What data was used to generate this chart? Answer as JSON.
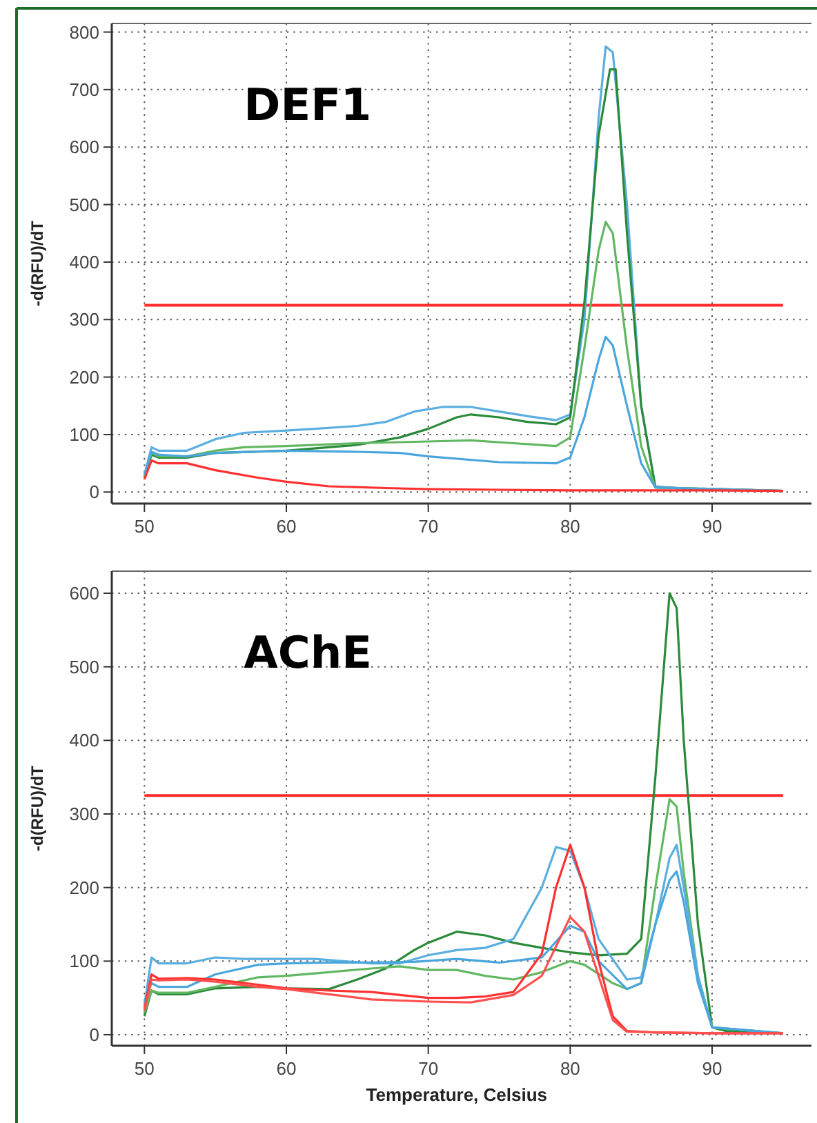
{
  "chart_data": [
    {
      "type": "line",
      "title": "DEF1",
      "ylabel": "-d(RFU)/dT",
      "xlim": [
        47.7,
        97
      ],
      "xticks": [
        50,
        60,
        70,
        80,
        90
      ],
      "ylim": [
        -20,
        815
      ],
      "yticks": [
        0,
        100,
        200,
        300,
        400,
        500,
        600,
        700,
        800
      ],
      "grid": true,
      "marker": "none",
      "line_style": "solid",
      "ref_lines": [
        {
          "axis": "y",
          "value": 325,
          "color": "#ff2a2a"
        }
      ],
      "series": [
        {
          "color": "#5aaee0",
          "x": [
            50,
            50.5,
            51,
            53,
            55,
            57,
            60,
            62,
            65,
            67,
            69,
            71,
            73,
            75,
            77,
            79,
            80,
            81,
            82,
            82.5,
            83,
            84,
            85,
            86,
            88,
            95
          ],
          "values": [
            30,
            78,
            72,
            72,
            92,
            103,
            107,
            110,
            115,
            122,
            140,
            148,
            148,
            140,
            132,
            125,
            135,
            300,
            650,
            775,
            765,
            500,
            150,
            10,
            6,
            2
          ]
        },
        {
          "color": "#2a8a3a",
          "x": [
            50,
            50.5,
            51,
            53,
            55,
            60,
            65,
            68,
            70,
            72,
            73,
            75,
            77,
            79,
            80,
            81,
            82,
            82.8,
            83.2,
            84,
            85,
            86,
            95
          ],
          "values": [
            25,
            65,
            60,
            60,
            68,
            72,
            82,
            95,
            110,
            130,
            135,
            130,
            122,
            118,
            130,
            330,
            620,
            735,
            735,
            450,
            150,
            8,
            2
          ]
        },
        {
          "color": "#62b862",
          "x": [
            50,
            50.5,
            51,
            53,
            55,
            57,
            60,
            65,
            70,
            73,
            76,
            79,
            80,
            81,
            82,
            82.5,
            83,
            84,
            85,
            86,
            95
          ],
          "values": [
            28,
            68,
            62,
            62,
            72,
            78,
            80,
            85,
            88,
            90,
            85,
            80,
            95,
            250,
            420,
            470,
            450,
            250,
            80,
            8,
            2
          ]
        },
        {
          "color": "#4aa6dc",
          "x": [
            50,
            50.5,
            51,
            53,
            55,
            60,
            65,
            68,
            70,
            75,
            79,
            80,
            81,
            82,
            82.5,
            83,
            84,
            85,
            86,
            95
          ],
          "values": [
            30,
            70,
            65,
            62,
            68,
            72,
            70,
            68,
            62,
            52,
            50,
            60,
            130,
            230,
            270,
            255,
            150,
            50,
            8,
            2
          ]
        },
        {
          "color": "#ff3030",
          "x": [
            50,
            50.5,
            51,
            53,
            55,
            58,
            60,
            63,
            67,
            70,
            75,
            80,
            85,
            90,
            95
          ],
          "values": [
            22,
            55,
            50,
            50,
            38,
            25,
            18,
            10,
            7,
            5,
            4,
            3,
            3,
            3,
            2
          ]
        }
      ]
    },
    {
      "type": "line",
      "title": "AChE",
      "ylabel": "-d(RFU)/dT",
      "xlabel": "Temperature, Celsius",
      "xlim": [
        47.7,
        97
      ],
      "xticks": [
        50,
        60,
        70,
        80,
        90
      ],
      "ylim": [
        -15,
        630
      ],
      "yticks": [
        0,
        100,
        200,
        300,
        400,
        500,
        600
      ],
      "grid": true,
      "marker": "none",
      "line_style": "solid",
      "ref_lines": [
        {
          "axis": "y",
          "value": 325,
          "color": "#ff2a2a"
        }
      ],
      "series": [
        {
          "color": "#2a8a3a",
          "x": [
            50,
            50.5,
            51,
            53,
            55,
            58,
            60,
            63,
            65,
            67,
            69,
            70,
            72,
            74,
            76,
            78,
            80,
            82,
            84,
            85,
            86,
            87,
            87.5,
            88,
            89,
            90,
            91,
            95
          ],
          "values": [
            25,
            60,
            55,
            55,
            63,
            65,
            63,
            62,
            75,
            90,
            115,
            125,
            140,
            135,
            125,
            118,
            112,
            108,
            110,
            130,
            350,
            600,
            580,
            400,
            150,
            10,
            5,
            2
          ]
        },
        {
          "color": "#62b862",
          "x": [
            50,
            50.5,
            51,
            53,
            55,
            58,
            60,
            63,
            66,
            68,
            70,
            72,
            74,
            76,
            78,
            80,
            81,
            83,
            84,
            85,
            86,
            87,
            87.5,
            88,
            89,
            90,
            95
          ],
          "values": [
            30,
            60,
            57,
            57,
            65,
            78,
            80,
            85,
            90,
            93,
            88,
            88,
            80,
            75,
            85,
            100,
            95,
            70,
            62,
            70,
            200,
            320,
            310,
            220,
            80,
            10,
            2
          ]
        },
        {
          "color": "#5aaee0",
          "x": [
            50,
            50.5,
            51,
            53,
            55,
            57,
            60,
            62,
            64,
            66,
            68,
            70,
            72,
            74,
            76,
            78,
            79,
            80,
            81,
            82,
            84,
            85,
            86,
            87,
            87.5,
            88,
            89,
            90,
            95
          ],
          "values": [
            40,
            105,
            97,
            97,
            105,
            103,
            103,
            103,
            100,
            97,
            97,
            108,
            115,
            118,
            130,
            200,
            255,
            250,
            200,
            130,
            75,
            78,
            150,
            240,
            258,
            200,
            80,
            10,
            2
          ]
        },
        {
          "color": "#4aa6dc",
          "x": [
            50,
            50.5,
            51,
            53,
            55,
            58,
            60,
            63,
            66,
            69,
            72,
            75,
            78,
            80,
            81,
            82,
            84,
            85,
            86,
            87,
            87.5,
            88,
            89,
            90,
            95
          ],
          "values": [
            45,
            70,
            65,
            65,
            82,
            95,
            97,
            98,
            98,
            99,
            103,
            98,
            105,
            148,
            140,
            100,
            62,
            70,
            150,
            210,
            222,
            180,
            70,
            10,
            2
          ]
        },
        {
          "color": "#ff3030",
          "x": [
            50,
            50.5,
            51,
            53,
            55,
            58,
            60,
            63,
            66,
            70,
            72,
            74,
            76,
            78,
            79,
            80,
            81,
            82,
            83,
            84,
            86,
            90,
            95
          ],
          "values": [
            35,
            82,
            76,
            77,
            75,
            68,
            63,
            60,
            58,
            50,
            50,
            52,
            58,
            110,
            200,
            258,
            200,
            100,
            25,
            5,
            3,
            2,
            2
          ]
        },
        {
          "color": "#ff5050",
          "x": [
            50,
            50.5,
            51,
            53,
            55,
            58,
            60,
            63,
            66,
            70,
            73,
            76,
            78,
            79,
            80,
            81,
            82,
            83,
            84,
            90,
            95
          ],
          "values": [
            32,
            75,
            74,
            75,
            72,
            65,
            62,
            55,
            48,
            45,
            44,
            54,
            80,
            120,
            160,
            140,
            80,
            20,
            4,
            2,
            2
          ]
        }
      ]
    }
  ]
}
